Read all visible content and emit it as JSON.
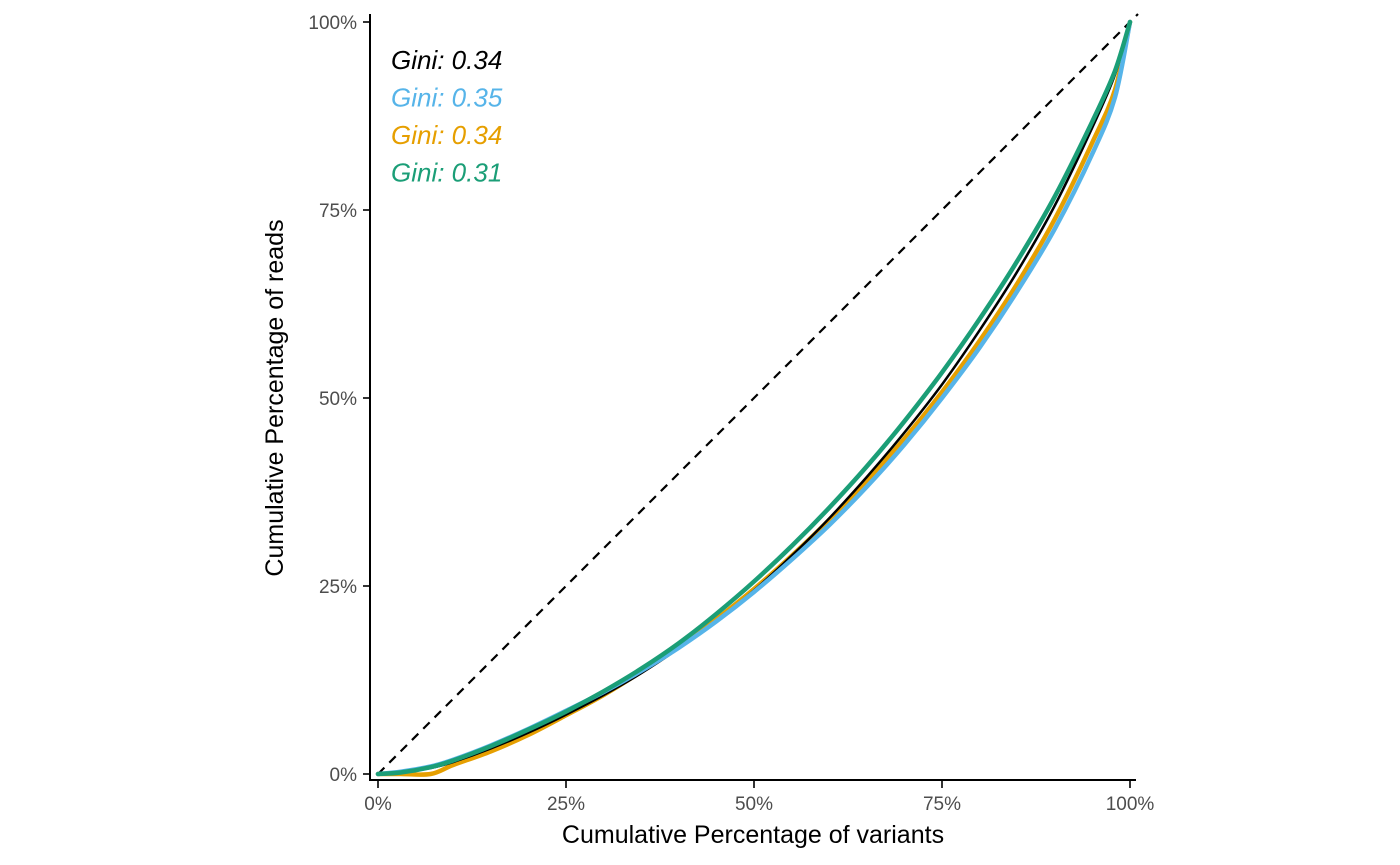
{
  "chart_data": {
    "type": "line",
    "title": "",
    "xlabel": "Cumulative Percentage of variants",
    "ylabel": "Cumulative Percentage of reads",
    "xlim": [
      0,
      1
    ],
    "ylim": [
      0,
      1
    ],
    "x_ticks": [
      {
        "value": 0,
        "label": "0%"
      },
      {
        "value": 0.25,
        "label": "25%"
      },
      {
        "value": 0.5,
        "label": "50%"
      },
      {
        "value": 0.75,
        "label": "75%"
      },
      {
        "value": 1,
        "label": "100%"
      }
    ],
    "y_ticks": [
      {
        "value": 0,
        "label": "0%"
      },
      {
        "value": 0.25,
        "label": "25%"
      },
      {
        "value": 0.5,
        "label": "50%"
      },
      {
        "value": 0.75,
        "label": "75%"
      },
      {
        "value": 1,
        "label": "100%"
      }
    ],
    "grid": false,
    "legend": "none",
    "reference_line": {
      "style": "dashed",
      "color": "#000000",
      "points": [
        [
          0,
          0
        ],
        [
          1,
          1
        ]
      ]
    },
    "annotations": [
      {
        "text": "Gini: 0.34",
        "color": "#000000"
      },
      {
        "text": "Gini: 0.35",
        "color": "#56B4E9"
      },
      {
        "text": "Gini: 0.34",
        "color": "#E69F00"
      },
      {
        "text": "Gini: 0.31",
        "color": "#1B9E77"
      }
    ],
    "series": [
      {
        "color": "#E69F00",
        "points": [
          [
            0,
            0
          ],
          [
            0.03,
            0.0
          ],
          [
            0.07,
            0.0
          ],
          [
            0.1,
            0.012
          ],
          [
            0.15,
            0.03
          ],
          [
            0.2,
            0.052
          ],
          [
            0.25,
            0.078
          ],
          [
            0.3,
            0.105
          ],
          [
            0.35,
            0.136
          ],
          [
            0.4,
            0.17
          ],
          [
            0.45,
            0.206
          ],
          [
            0.5,
            0.246
          ],
          [
            0.55,
            0.29
          ],
          [
            0.6,
            0.338
          ],
          [
            0.65,
            0.39
          ],
          [
            0.7,
            0.446
          ],
          [
            0.75,
            0.508
          ],
          [
            0.8,
            0.576
          ],
          [
            0.85,
            0.652
          ],
          [
            0.9,
            0.738
          ],
          [
            0.95,
            0.84
          ],
          [
            0.98,
            0.91
          ],
          [
            1,
            1
          ]
        ]
      },
      {
        "color": "#000000",
        "points": [
          [
            0,
            0
          ],
          [
            0.03,
            0.002
          ],
          [
            0.07,
            0.008
          ],
          [
            0.1,
            0.016
          ],
          [
            0.15,
            0.034
          ],
          [
            0.2,
            0.055
          ],
          [
            0.25,
            0.079
          ],
          [
            0.3,
            0.105
          ],
          [
            0.35,
            0.134
          ],
          [
            0.4,
            0.167
          ],
          [
            0.45,
            0.203
          ],
          [
            0.5,
            0.244
          ],
          [
            0.55,
            0.29
          ],
          [
            0.6,
            0.34
          ],
          [
            0.65,
            0.395
          ],
          [
            0.7,
            0.454
          ],
          [
            0.75,
            0.518
          ],
          [
            0.8,
            0.59
          ],
          [
            0.85,
            0.668
          ],
          [
            0.9,
            0.756
          ],
          [
            0.95,
            0.86
          ],
          [
            0.98,
            0.93
          ],
          [
            1,
            1
          ]
        ]
      },
      {
        "color": "#56B4E9",
        "points": [
          [
            0,
            0
          ],
          [
            0.03,
            0.003
          ],
          [
            0.07,
            0.01
          ],
          [
            0.1,
            0.019
          ],
          [
            0.15,
            0.038
          ],
          [
            0.2,
            0.06
          ],
          [
            0.25,
            0.084
          ],
          [
            0.3,
            0.109
          ],
          [
            0.35,
            0.137
          ],
          [
            0.4,
            0.168
          ],
          [
            0.45,
            0.203
          ],
          [
            0.5,
            0.242
          ],
          [
            0.55,
            0.285
          ],
          [
            0.6,
            0.331
          ],
          [
            0.65,
            0.382
          ],
          [
            0.7,
            0.438
          ],
          [
            0.75,
            0.5
          ],
          [
            0.8,
            0.567
          ],
          [
            0.85,
            0.642
          ],
          [
            0.9,
            0.725
          ],
          [
            0.95,
            0.825
          ],
          [
            0.98,
            0.9
          ],
          [
            1,
            1
          ]
        ]
      },
      {
        "color": "#1B9E77",
        "points": [
          [
            0,
            0
          ],
          [
            0.03,
            0.002
          ],
          [
            0.07,
            0.009
          ],
          [
            0.1,
            0.018
          ],
          [
            0.15,
            0.037
          ],
          [
            0.2,
            0.059
          ],
          [
            0.25,
            0.083
          ],
          [
            0.3,
            0.11
          ],
          [
            0.35,
            0.14
          ],
          [
            0.4,
            0.174
          ],
          [
            0.45,
            0.213
          ],
          [
            0.5,
            0.256
          ],
          [
            0.55,
            0.303
          ],
          [
            0.6,
            0.354
          ],
          [
            0.65,
            0.409
          ],
          [
            0.7,
            0.469
          ],
          [
            0.75,
            0.534
          ],
          [
            0.8,
            0.605
          ],
          [
            0.85,
            0.682
          ],
          [
            0.9,
            0.768
          ],
          [
            0.95,
            0.868
          ],
          [
            0.98,
            0.935
          ],
          [
            1,
            1
          ]
        ]
      }
    ]
  }
}
